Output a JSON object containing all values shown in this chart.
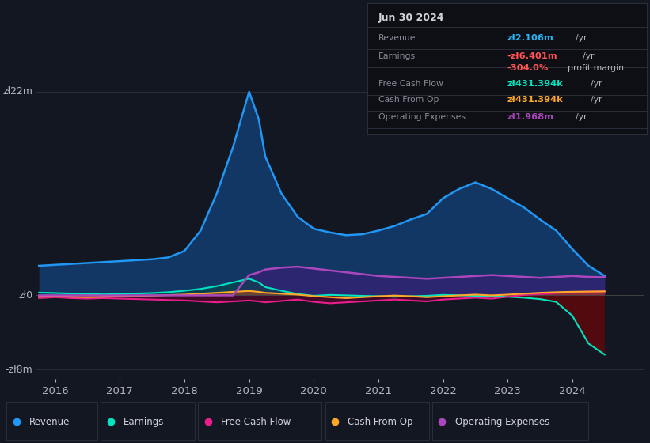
{
  "bg_color": "#131722",
  "grid_color": "#2a2e39",
  "text_color": "#b2b5be",
  "title_color": "#d1d4dc",
  "ylim": [
    -9000000,
    24000000
  ],
  "xlim": [
    2015.7,
    2025.1
  ],
  "line_colors": {
    "Revenue": "#2196f3",
    "Earnings": "#00e5c0",
    "FreeCashFlow": "#e91e8c",
    "CashFromOp": "#ffa726",
    "OperatingExpenses": "#ab47bc"
  },
  "years": [
    2015.75,
    2016.0,
    2016.25,
    2016.5,
    2016.75,
    2017.0,
    2017.25,
    2017.5,
    2017.75,
    2018.0,
    2018.25,
    2018.5,
    2018.75,
    2019.0,
    2019.15,
    2019.25,
    2019.5,
    2019.75,
    2020.0,
    2020.25,
    2020.5,
    2020.75,
    2021.0,
    2021.25,
    2021.5,
    2021.75,
    2022.0,
    2022.25,
    2022.5,
    2022.75,
    2023.0,
    2023.25,
    2023.5,
    2023.75,
    2024.0,
    2024.25,
    2024.5
  ],
  "revenue": [
    3200000,
    3300000,
    3400000,
    3500000,
    3600000,
    3700000,
    3800000,
    3900000,
    4100000,
    4800000,
    7000000,
    11000000,
    16000000,
    22000000,
    19000000,
    15000000,
    11000000,
    8500000,
    7200000,
    6800000,
    6500000,
    6600000,
    7000000,
    7500000,
    8200000,
    8800000,
    10500000,
    11500000,
    12200000,
    11500000,
    10500000,
    9500000,
    8200000,
    7000000,
    5000000,
    3200000,
    2106000
  ],
  "earnings": [
    300000,
    250000,
    200000,
    150000,
    100000,
    150000,
    200000,
    250000,
    350000,
    500000,
    700000,
    1000000,
    1400000,
    1800000,
    1400000,
    900000,
    500000,
    150000,
    -50000,
    50000,
    0,
    -50000,
    -100000,
    -150000,
    -100000,
    -50000,
    50000,
    0,
    -50000,
    -100000,
    -150000,
    -250000,
    -400000,
    -700000,
    -2200000,
    -5200000,
    -6401000
  ],
  "free_cash_flow": [
    -300000,
    -200000,
    -300000,
    -350000,
    -300000,
    -350000,
    -400000,
    -450000,
    -500000,
    -550000,
    -650000,
    -750000,
    -650000,
    -550000,
    -650000,
    -750000,
    -600000,
    -450000,
    -700000,
    -850000,
    -750000,
    -650000,
    -550000,
    -450000,
    -550000,
    -650000,
    -450000,
    -350000,
    -250000,
    -350000,
    -150000,
    50000,
    150000,
    250000,
    350000,
    400000,
    431394
  ],
  "cash_from_op": [
    -150000,
    -100000,
    -150000,
    -200000,
    -150000,
    -120000,
    -80000,
    -30000,
    30000,
    80000,
    180000,
    280000,
    380000,
    480000,
    380000,
    280000,
    180000,
    80000,
    -80000,
    -200000,
    -300000,
    -200000,
    -100000,
    -20000,
    -100000,
    -200000,
    -100000,
    0,
    80000,
    0,
    80000,
    180000,
    280000,
    350000,
    390000,
    410000,
    431394
  ],
  "operating_expenses": [
    0,
    0,
    0,
    0,
    0,
    0,
    0,
    0,
    0,
    0,
    0,
    0,
    0,
    2200000,
    2500000,
    2800000,
    3000000,
    3100000,
    2900000,
    2700000,
    2500000,
    2300000,
    2100000,
    2000000,
    1900000,
    1800000,
    1900000,
    2000000,
    2100000,
    2200000,
    2100000,
    2000000,
    1900000,
    2000000,
    2100000,
    2000000,
    1968000
  ],
  "legend": [
    {
      "label": "Revenue",
      "color": "#2196f3"
    },
    {
      "label": "Earnings",
      "color": "#00e5c0"
    },
    {
      "label": "Free Cash Flow",
      "color": "#e91e8c"
    },
    {
      "label": "Cash From Op",
      "color": "#ffa726"
    },
    {
      "label": "Operating Expenses",
      "color": "#ab47bc"
    }
  ]
}
